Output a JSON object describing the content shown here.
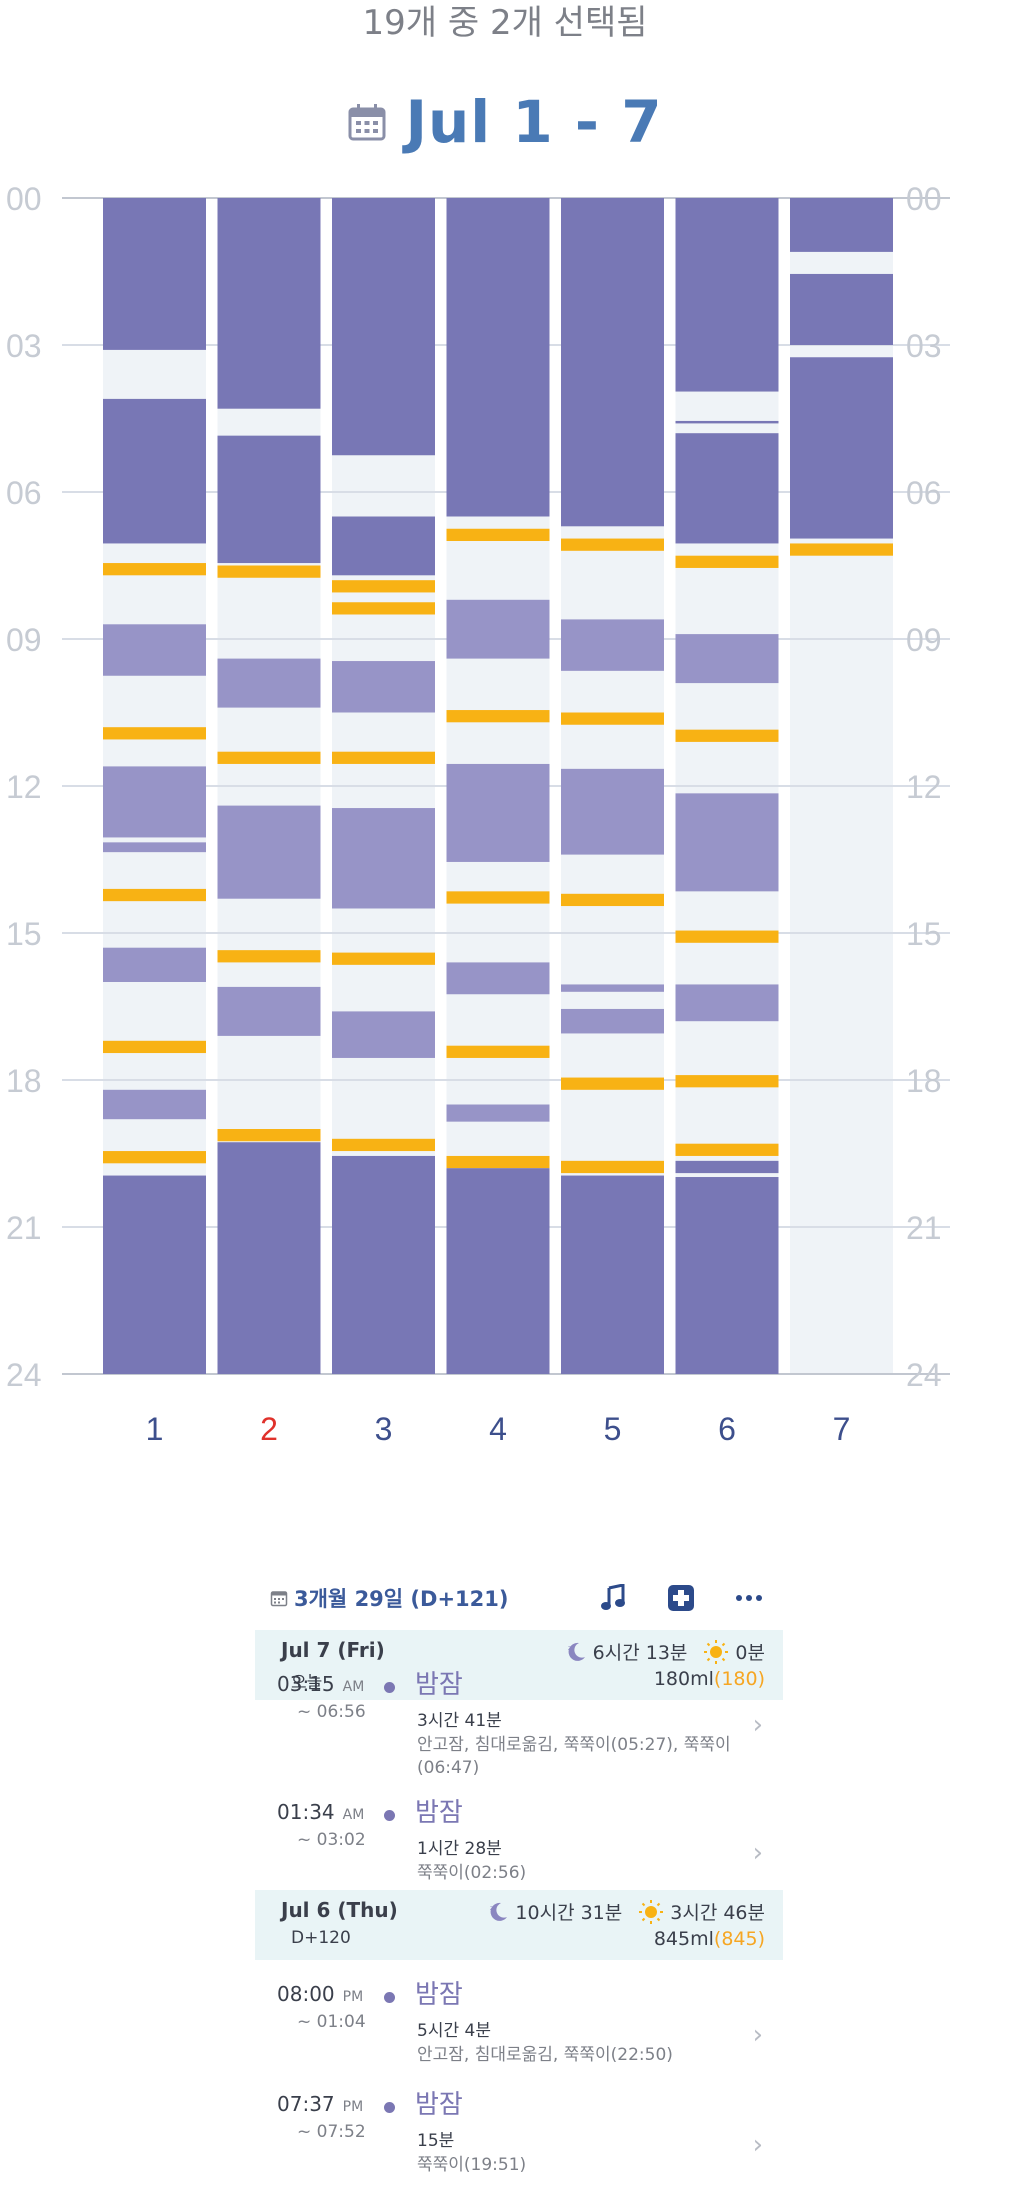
{
  "top_banner": "19개 중 2개 선택됨",
  "range_title": "Jul 1 - 7",
  "chart_data": {
    "type": "timeline",
    "y_ticks": [
      "00",
      "03",
      "06",
      "09",
      "12",
      "15",
      "18",
      "21",
      "24"
    ],
    "days": [
      {
        "label": "1",
        "color": "#3d4f8c",
        "segments": [
          {
            "k": "sleep",
            "s": 0,
            "e": 3.1
          },
          {
            "k": "sleep",
            "s": 4.1,
            "e": 7.05
          },
          {
            "k": "feed",
            "s": 7.45,
            "e": 7.7
          },
          {
            "k": "nap",
            "s": 8.7,
            "e": 9.75
          },
          {
            "k": "feed",
            "s": 10.8,
            "e": 11.05
          },
          {
            "k": "nap",
            "s": 11.6,
            "e": 13.05
          },
          {
            "k": "nap",
            "s": 13.15,
            "e": 13.35
          },
          {
            "k": "feed",
            "s": 14.1,
            "e": 14.35
          },
          {
            "k": "nap",
            "s": 15.3,
            "e": 16.0
          },
          {
            "k": "feed",
            "s": 17.2,
            "e": 17.45
          },
          {
            "k": "nap",
            "s": 18.2,
            "e": 18.8
          },
          {
            "k": "feed",
            "s": 19.45,
            "e": 19.7
          },
          {
            "k": "sleep",
            "s": 19.95,
            "e": 24
          }
        ]
      },
      {
        "label": "2",
        "color": "#e0312b",
        "segments": [
          {
            "k": "sleep",
            "s": 0,
            "e": 4.3
          },
          {
            "k": "sleep",
            "s": 4.85,
            "e": 7.45
          },
          {
            "k": "feed",
            "s": 7.5,
            "e": 7.75
          },
          {
            "k": "nap",
            "s": 9.4,
            "e": 10.4
          },
          {
            "k": "feed",
            "s": 11.3,
            "e": 11.55
          },
          {
            "k": "nap",
            "s": 12.4,
            "e": 14.3
          },
          {
            "k": "feed",
            "s": 15.35,
            "e": 15.6
          },
          {
            "k": "nap",
            "s": 16.1,
            "e": 17.1
          },
          {
            "k": "feed",
            "s": 19.0,
            "e": 19.25
          },
          {
            "k": "sleep",
            "s": 19.27,
            "e": 24
          }
        ]
      },
      {
        "label": "3",
        "color": "#3d4f8c",
        "segments": [
          {
            "k": "sleep",
            "s": 0,
            "e": 5.25
          },
          {
            "k": "sleep",
            "s": 6.5,
            "e": 7.7
          },
          {
            "k": "feed",
            "s": 7.8,
            "e": 8.05
          },
          {
            "k": "feed",
            "s": 8.25,
            "e": 8.5
          },
          {
            "k": "nap",
            "s": 9.45,
            "e": 10.5
          },
          {
            "k": "feed",
            "s": 11.3,
            "e": 11.55
          },
          {
            "k": "nap",
            "s": 12.45,
            "e": 14.5
          },
          {
            "k": "feed",
            "s": 15.4,
            "e": 15.65
          },
          {
            "k": "nap",
            "s": 16.6,
            "e": 17.55
          },
          {
            "k": "feed",
            "s": 19.2,
            "e": 19.45
          },
          {
            "k": "sleep",
            "s": 19.55,
            "e": 24
          }
        ]
      },
      {
        "label": "4",
        "color": "#3d4f8c",
        "segments": [
          {
            "k": "sleep",
            "s": 0,
            "e": 6.5
          },
          {
            "k": "feed",
            "s": 6.75,
            "e": 7.0
          },
          {
            "k": "nap",
            "s": 8.2,
            "e": 9.4
          },
          {
            "k": "feed",
            "s": 10.45,
            "e": 10.7
          },
          {
            "k": "nap",
            "s": 11.55,
            "e": 13.55
          },
          {
            "k": "feed",
            "s": 14.15,
            "e": 14.4
          },
          {
            "k": "nap",
            "s": 15.6,
            "e": 16.25
          },
          {
            "k": "feed",
            "s": 17.3,
            "e": 17.55
          },
          {
            "k": "nap",
            "s": 18.5,
            "e": 18.85
          },
          {
            "k": "feed",
            "s": 19.55,
            "e": 19.8
          },
          {
            "k": "sleep",
            "s": 19.8,
            "e": 24
          }
        ]
      },
      {
        "label": "5",
        "color": "#3d4f8c",
        "segments": [
          {
            "k": "sleep",
            "s": 0,
            "e": 6.7
          },
          {
            "k": "feed",
            "s": 6.95,
            "e": 7.2
          },
          {
            "k": "nap",
            "s": 8.6,
            "e": 9.65
          },
          {
            "k": "feed",
            "s": 10.5,
            "e": 10.75
          },
          {
            "k": "nap",
            "s": 11.65,
            "e": 13.4
          },
          {
            "k": "feed",
            "s": 14.2,
            "e": 14.45
          },
          {
            "k": "nap",
            "s": 16.05,
            "e": 16.2
          },
          {
            "k": "nap",
            "s": 16.55,
            "e": 17.05
          },
          {
            "k": "feed",
            "s": 17.95,
            "e": 18.2
          },
          {
            "k": "feed",
            "s": 19.65,
            "e": 19.9
          },
          {
            "k": "sleep",
            "s": 19.95,
            "e": 24
          }
        ]
      },
      {
        "label": "6",
        "color": "#3d4f8c",
        "segments": [
          {
            "k": "sleep",
            "s": 0,
            "e": 3.95
          },
          {
            "k": "line",
            "s": 4.55,
            "e": 4.6
          },
          {
            "k": "sleep",
            "s": 4.8,
            "e": 7.05
          },
          {
            "k": "feed",
            "s": 7.3,
            "e": 7.55
          },
          {
            "k": "nap",
            "s": 8.9,
            "e": 9.9
          },
          {
            "k": "feed",
            "s": 10.85,
            "e": 11.1
          },
          {
            "k": "nap",
            "s": 12.15,
            "e": 14.15
          },
          {
            "k": "feed",
            "s": 14.95,
            "e": 15.2
          },
          {
            "k": "nap",
            "s": 16.05,
            "e": 16.8
          },
          {
            "k": "feed",
            "s": 17.9,
            "e": 18.15
          },
          {
            "k": "feed",
            "s": 19.3,
            "e": 19.55
          },
          {
            "k": "sleep",
            "s": 19.65,
            "e": 19.9
          },
          {
            "k": "sleep",
            "s": 19.98,
            "e": 24
          }
        ]
      },
      {
        "label": "7",
        "color": "#3d4f8c",
        "segments": [
          {
            "k": "sleep",
            "s": 0,
            "e": 1.1
          },
          {
            "k": "sleep",
            "s": 1.55,
            "e": 3.0
          },
          {
            "k": "sleep",
            "s": 3.25,
            "e": 6.95
          },
          {
            "k": "feed",
            "s": 7.05,
            "e": 7.3
          }
        ]
      }
    ],
    "colors": {
      "sleep": "#7877b5",
      "nap": "#9794c7",
      "feed": "#f8b214",
      "line": "#7877b5",
      "bg": "#eff3f7",
      "grid": "#d8dde6",
      "axis": "#c2c7d0"
    }
  },
  "summary": {
    "date_text": "3개월 29일 (D+121)"
  },
  "days_list": [
    {
      "title": "Jul 7 (Fri)",
      "sub": "오늘",
      "sleep": "6시간 13분",
      "awake": "0분",
      "ml": "180ml",
      "ml_paren": "(180)",
      "entries": [
        {
          "start": "03:15",
          "ampm": "AM",
          "end": "~ 06:56",
          "title": "밤잠",
          "dur": "3시간 41분",
          "note": "안고잠, 침대로옮김, 쭉쭉이(05:27), 쭉쭉이(06:47)"
        },
        {
          "start": "01:34",
          "ampm": "AM",
          "end": "~ 03:02",
          "title": "밤잠",
          "dur": "1시간 28분",
          "note": "쭉쭉이(02:56)"
        }
      ]
    },
    {
      "title": "Jul 6 (Thu)",
      "sub": "D+120",
      "sleep": "10시간 31분",
      "awake": "3시간 46분",
      "ml": "845ml",
      "ml_paren": "(845)",
      "entries": [
        {
          "start": "08:00",
          "ampm": "PM",
          "end": "~ 01:04",
          "title": "밤잠",
          "dur": "5시간 4분",
          "note": "안고잠, 침대로옮김, 쭉쭉이(22:50)"
        },
        {
          "start": "07:37",
          "ampm": "PM",
          "end": "~ 07:52",
          "title": "밤잠",
          "dur": "15분",
          "note": "쭉쭉이(19:51)"
        }
      ]
    }
  ]
}
